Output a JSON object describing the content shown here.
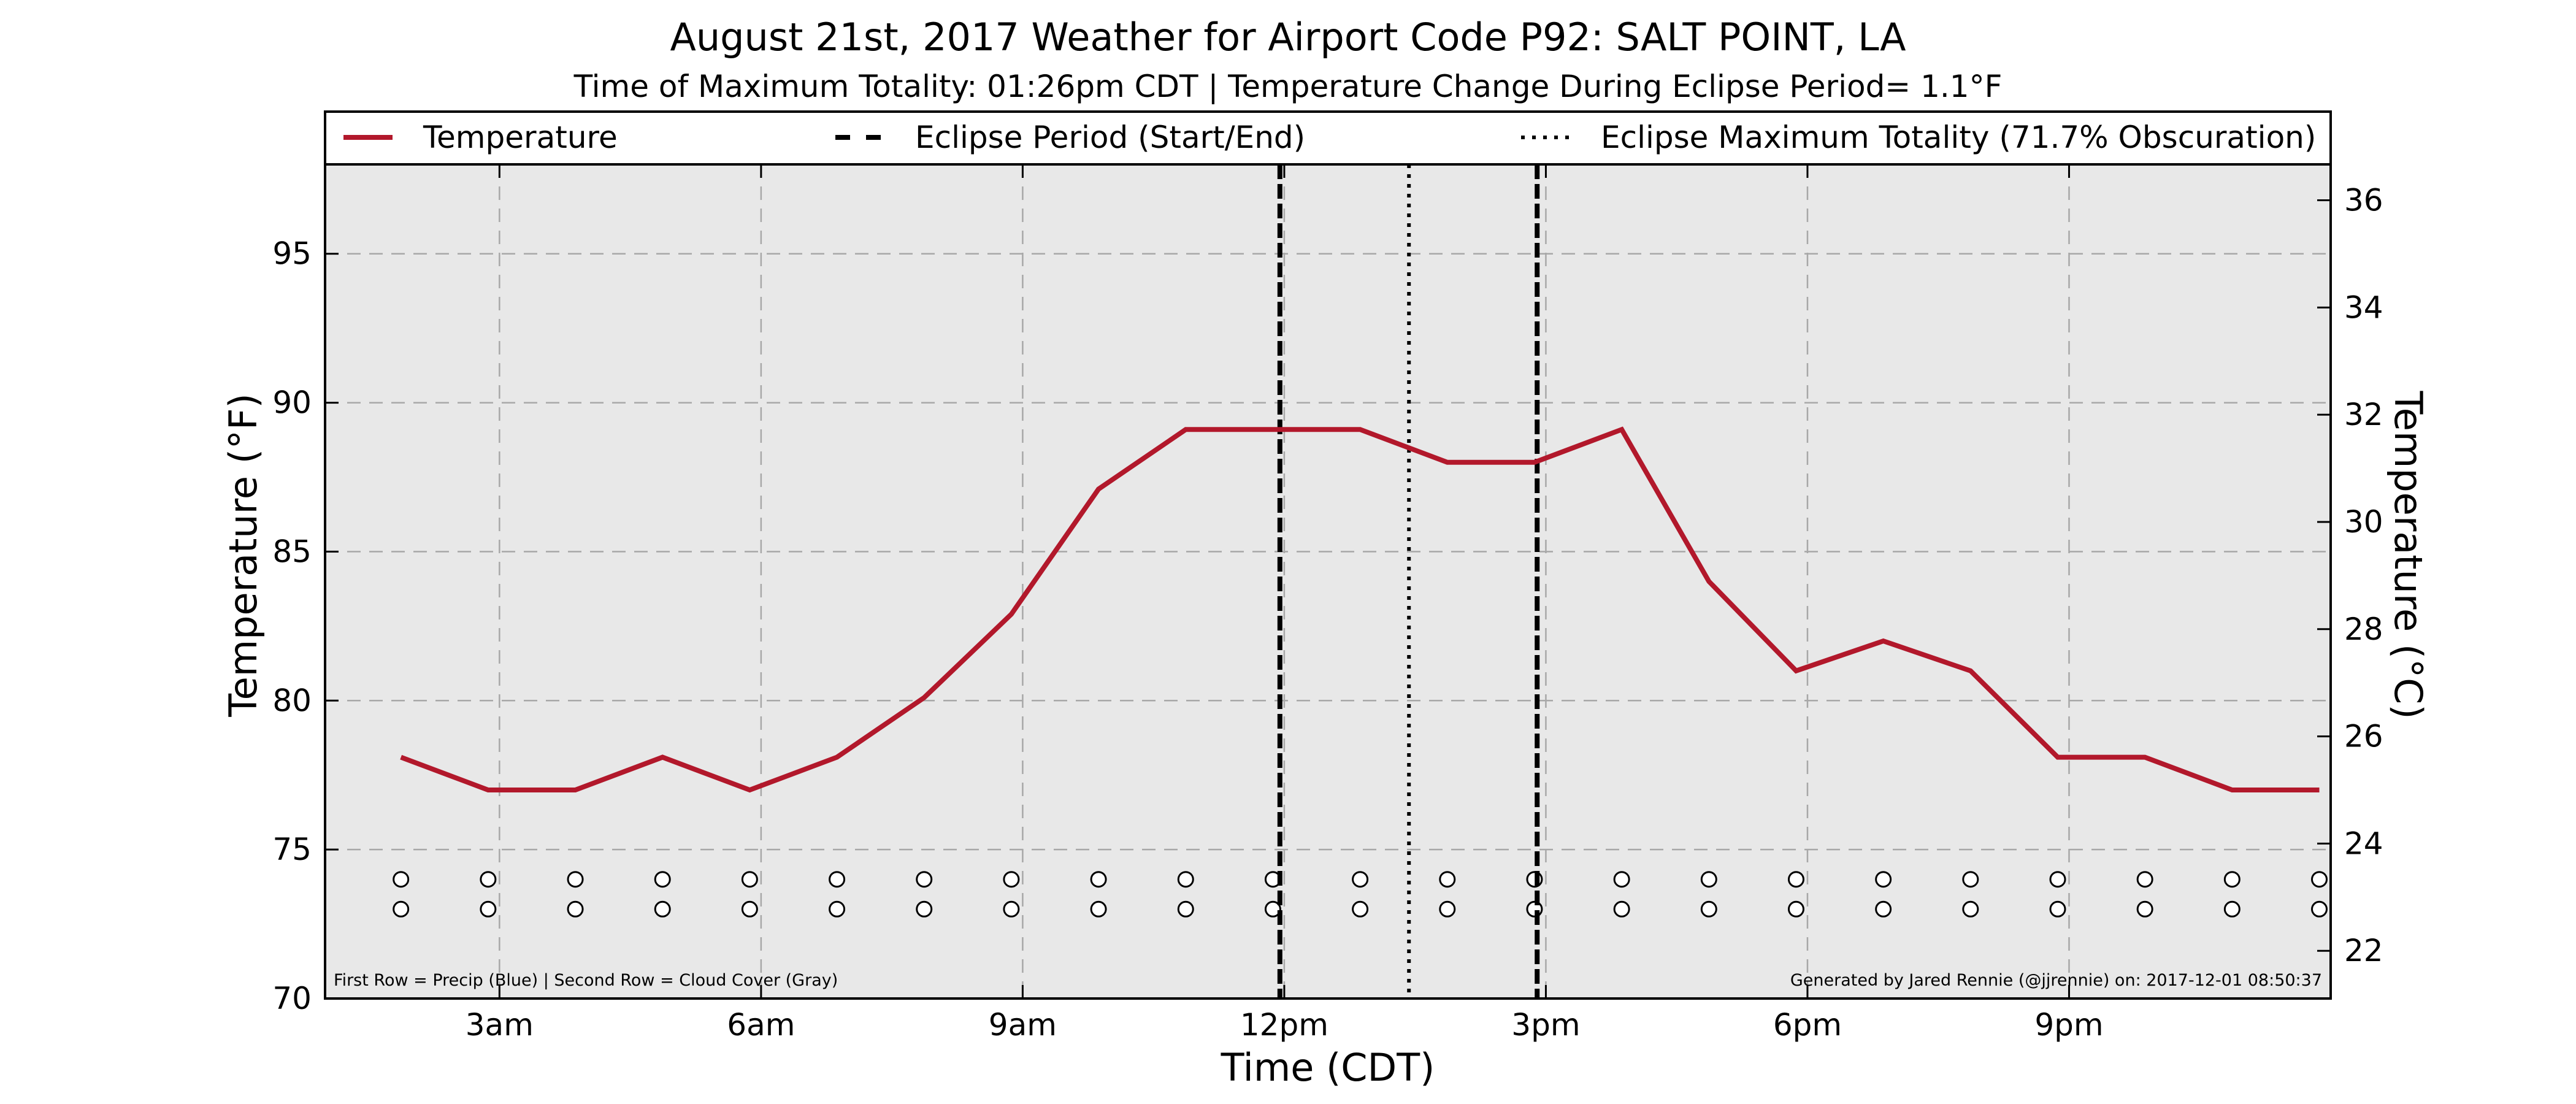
{
  "chart_data": {
    "type": "line",
    "title": "August 21st, 2017 Weather for Airport Code P92: SALT POINT, LA",
    "subtitle": "Time of Maximum Totality: 01:26pm CDT | Temperature Change During Eclipse Period= 1.1°F",
    "xlabel": "Time (CDT)",
    "ylabel": "Temperature (°F)",
    "y2label": "Temperature (°C)",
    "xlim": [
      1.0,
      24.0
    ],
    "ylim": [
      70,
      98
    ],
    "y2lim": [
      21.11,
      36.67
    ],
    "x_ticks": [
      {
        "x": 3,
        "label": "3am"
      },
      {
        "x": 6,
        "label": "6am"
      },
      {
        "x": 9,
        "label": "9am"
      },
      {
        "x": 12,
        "label": "12pm"
      },
      {
        "x": 15,
        "label": "3pm"
      },
      {
        "x": 18,
        "label": "6pm"
      },
      {
        "x": 21,
        "label": "9pm"
      }
    ],
    "y_ticks": [
      70,
      75,
      80,
      85,
      90,
      95
    ],
    "y2_ticks": [
      22,
      24,
      26,
      28,
      30,
      32,
      34,
      36
    ],
    "grid": true,
    "legend_position": "top",
    "series": [
      {
        "name": "Temperature",
        "color": "#b2182b",
        "x": [
          1.87,
          2.87,
          3.87,
          4.87,
          5.87,
          6.87,
          7.87,
          8.87,
          9.87,
          10.87,
          11.87,
          12.87,
          13.87,
          14.87,
          15.87,
          16.87,
          17.87,
          18.87,
          19.87,
          20.87,
          21.87,
          22.87,
          23.87
        ],
        "y": [
          78.1,
          77.0,
          77.0,
          78.1,
          77.0,
          78.1,
          80.1,
          82.9,
          87.1,
          89.1,
          89.1,
          89.1,
          88.0,
          88.0,
          89.1,
          84.0,
          81.0,
          82.0,
          81.0,
          78.1,
          78.1,
          77.0,
          77.0
        ]
      }
    ],
    "eclipse": {
      "legend_period": "Eclipse Period (Start/End)",
      "legend_max": "Eclipse Maximum Totality (71.7% Obscuration)",
      "start": 11.95,
      "end": 14.9,
      "max": 13.43
    },
    "markers": {
      "x": [
        1.87,
        2.87,
        3.87,
        4.87,
        5.87,
        6.87,
        7.87,
        8.87,
        9.87,
        10.87,
        11.87,
        12.87,
        13.87,
        14.87,
        15.87,
        16.87,
        17.87,
        18.87,
        19.87,
        20.87,
        21.87,
        22.87,
        23.87
      ],
      "precip_row_y": 74.0,
      "cloud_row_y": 73.0
    },
    "footnote_left": "First Row = Precip (Blue) | Second Row = Cloud Cover (Gray)",
    "footnote_right": "Generated by Jared Rennie (@jjrennie) on: 2017-12-01 08:50:37",
    "colors": {
      "plot_background": "#e8e8e8",
      "line": "#b2182b"
    }
  }
}
